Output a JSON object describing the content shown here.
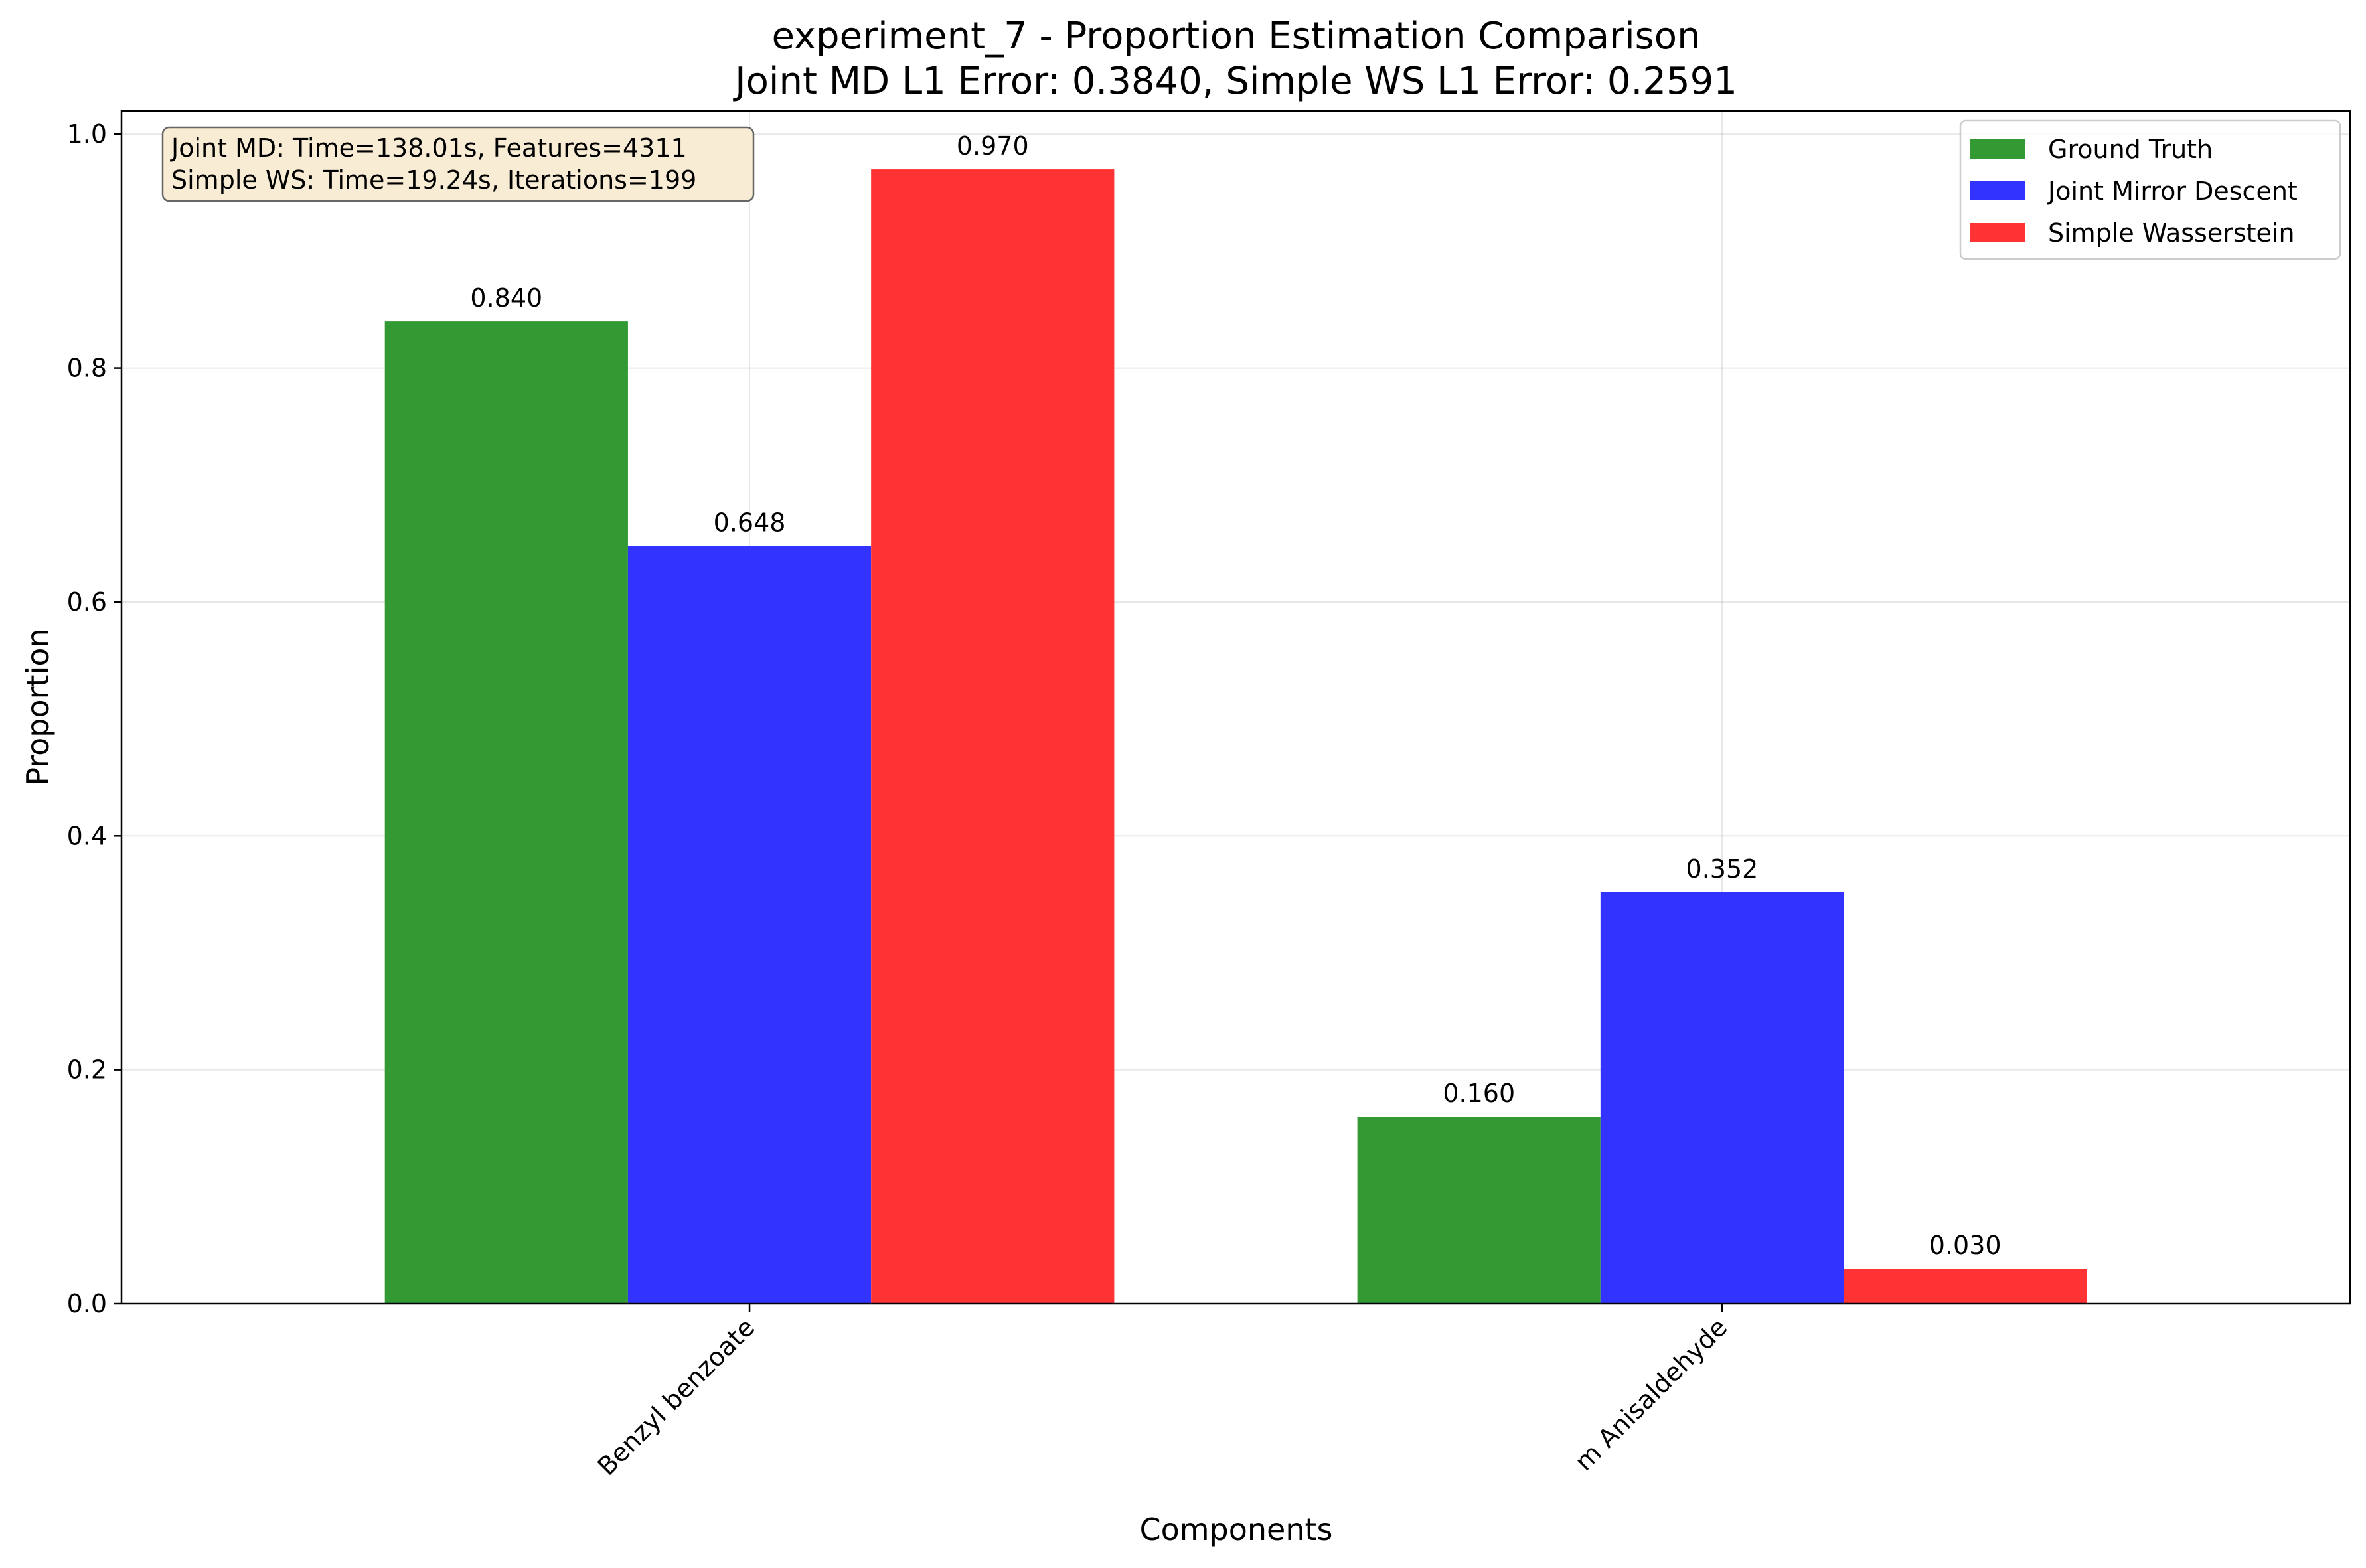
{
  "chart_data": {
    "type": "bar",
    "title": "experiment_7 - Proportion Estimation Comparison",
    "subtitle": "Joint MD L1 Error: 0.3840, Simple WS L1 Error: 0.2591",
    "xlabel": "Components",
    "ylabel": "Proportion",
    "categories": [
      "Benzyl benzoate",
      "m Anisaldehyde"
    ],
    "series": [
      {
        "name": "Ground Truth",
        "color": "#339933",
        "values": [
          0.84,
          0.16
        ],
        "labels": [
          "0.840",
          "0.160"
        ]
      },
      {
        "name": "Joint Mirror Descent",
        "color": "#3333ff",
        "values": [
          0.648,
          0.352
        ],
        "labels": [
          "0.648",
          "0.352"
        ]
      },
      {
        "name": "Simple Wasserstein",
        "color": "#ff3333",
        "values": [
          0.97,
          0.03
        ],
        "labels": [
          "0.970",
          "0.030"
        ]
      }
    ],
    "ylim": [
      0,
      1.02
    ],
    "yticks": [
      0.0,
      0.2,
      0.4,
      0.6,
      0.8,
      1.0
    ],
    "ytick_labels": [
      "0.0",
      "0.2",
      "0.4",
      "0.6",
      "0.8",
      "1.0"
    ],
    "grid": true,
    "legend": "top-right",
    "info_box": {
      "line1": "Joint MD: Time=138.01s, Features=4311",
      "line2": "Simple WS: Time=19.24s, Iterations=199",
      "background": "#f8ecd4"
    }
  }
}
